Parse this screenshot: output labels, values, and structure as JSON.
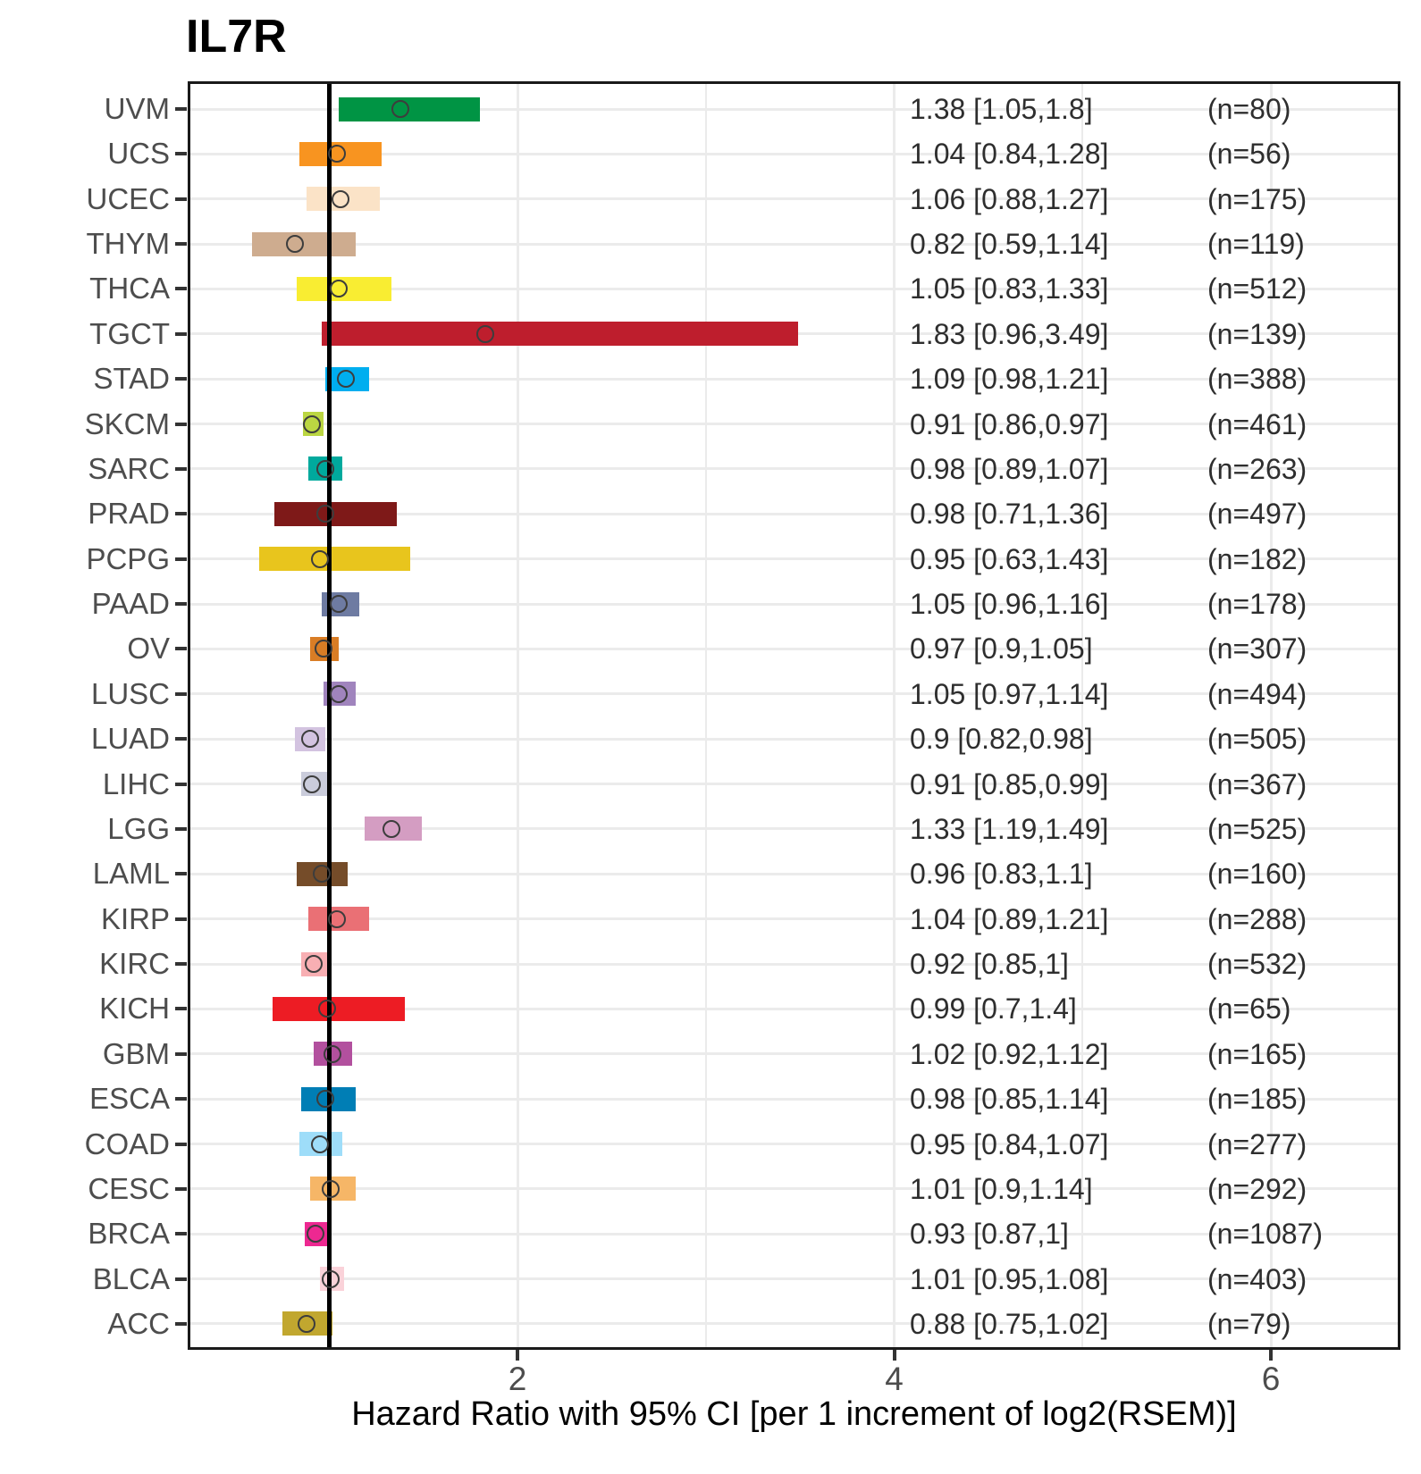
{
  "title": "IL7R",
  "x_axis_title": "Hazard Ratio with 95% CI [per 1 increment of log2(RSEM)]",
  "chart_data": {
    "type": "forest",
    "title": "IL7R",
    "xlabel": "Hazard Ratio with 95% CI [per 1 increment of log2(RSEM)]",
    "x_ticks": [
      2,
      4,
      6
    ],
    "x_minor_ticks": [
      3,
      5
    ],
    "xlim": [
      0.25,
      6.68
    ],
    "reference_line_x": 1,
    "grid": true,
    "legend": "none",
    "rows": [
      {
        "cancer": "UVM",
        "hr": 1.38,
        "ci_low": 1.05,
        "ci_high": 1.8,
        "n": 80,
        "color": "#009444",
        "hr_label": "1.38 [1.05,1.8]",
        "n_label": "(n=80)"
      },
      {
        "cancer": "UCS",
        "hr": 1.04,
        "ci_low": 0.84,
        "ci_high": 1.28,
        "n": 56,
        "color": "#F89420",
        "hr_label": "1.04 [0.84,1.28]",
        "n_label": "(n=56)"
      },
      {
        "cancer": "UCEC",
        "hr": 1.06,
        "ci_low": 0.88,
        "ci_high": 1.27,
        "n": 175,
        "color": "#FBE3C7",
        "hr_label": "1.06 [0.88,1.27]",
        "n_label": "(n=175)"
      },
      {
        "cancer": "THYM",
        "hr": 0.82,
        "ci_low": 0.59,
        "ci_high": 1.14,
        "n": 119,
        "color": "#CEAC8F",
        "hr_label": "0.82 [0.59,1.14]",
        "n_label": "(n=119)"
      },
      {
        "cancer": "THCA",
        "hr": 1.05,
        "ci_low": 0.83,
        "ci_high": 1.33,
        "n": 512,
        "color": "#F9ED32",
        "hr_label": "1.05 [0.83,1.33]",
        "n_label": "(n=512)"
      },
      {
        "cancer": "TGCT",
        "hr": 1.83,
        "ci_low": 0.96,
        "ci_high": 3.49,
        "n": 139,
        "color": "#BE1E2D",
        "hr_label": "1.83 [0.96,3.49]",
        "n_label": "(n=139)"
      },
      {
        "cancer": "STAD",
        "hr": 1.09,
        "ci_low": 0.98,
        "ci_high": 1.21,
        "n": 388,
        "color": "#00AEEF",
        "hr_label": "1.09 [0.98,1.21]",
        "n_label": "(n=388)"
      },
      {
        "cancer": "SKCM",
        "hr": 0.91,
        "ci_low": 0.86,
        "ci_high": 0.97,
        "n": 461,
        "color": "#BBD642",
        "hr_label": "0.91 [0.86,0.97]",
        "n_label": "(n=461)"
      },
      {
        "cancer": "SARC",
        "hr": 0.98,
        "ci_low": 0.89,
        "ci_high": 1.07,
        "n": 263,
        "color": "#00A99D",
        "hr_label": "0.98 [0.89,1.07]",
        "n_label": "(n=263)"
      },
      {
        "cancer": "PRAD",
        "hr": 0.98,
        "ci_low": 0.71,
        "ci_high": 1.36,
        "n": 497,
        "color": "#7E1918",
        "hr_label": "0.98 [0.71,1.36]",
        "n_label": "(n=497)"
      },
      {
        "cancer": "PCPG",
        "hr": 0.95,
        "ci_low": 0.63,
        "ci_high": 1.43,
        "n": 182,
        "color": "#E8C51D",
        "hr_label": "0.95 [0.63,1.43]",
        "n_label": "(n=182)"
      },
      {
        "cancer": "PAAD",
        "hr": 1.05,
        "ci_low": 0.96,
        "ci_high": 1.16,
        "n": 178,
        "color": "#6E7BA2",
        "hr_label": "1.05 [0.96,1.16]",
        "n_label": "(n=178)"
      },
      {
        "cancer": "OV",
        "hr": 0.97,
        "ci_low": 0.9,
        "ci_high": 1.05,
        "n": 307,
        "color": "#D97D25",
        "hr_label": "0.97 [0.9,1.05]",
        "n_label": "(n=307)"
      },
      {
        "cancer": "LUSC",
        "hr": 1.05,
        "ci_low": 0.97,
        "ci_high": 1.14,
        "n": 494,
        "color": "#A084BD",
        "hr_label": "1.05 [0.97,1.14]",
        "n_label": "(n=494)"
      },
      {
        "cancer": "LUAD",
        "hr": 0.9,
        "ci_low": 0.82,
        "ci_high": 0.98,
        "n": 505,
        "color": "#D3C3E0",
        "hr_label": "0.9 [0.82,0.98]",
        "n_label": "(n=505)"
      },
      {
        "cancer": "LIHC",
        "hr": 0.91,
        "ci_low": 0.85,
        "ci_high": 0.99,
        "n": 367,
        "color": "#CACCDB",
        "hr_label": "0.91 [0.85,0.99]",
        "n_label": "(n=367)"
      },
      {
        "cancer": "LGG",
        "hr": 1.33,
        "ci_low": 1.19,
        "ci_high": 1.49,
        "n": 525,
        "color": "#D49DC2",
        "hr_label": "1.33 [1.19,1.49]",
        "n_label": "(n=525)"
      },
      {
        "cancer": "LAML",
        "hr": 0.96,
        "ci_low": 0.83,
        "ci_high": 1.1,
        "n": 160,
        "color": "#754C29",
        "hr_label": "0.96 [0.83,1.1]",
        "n_label": "(n=160)"
      },
      {
        "cancer": "KIRP",
        "hr": 1.04,
        "ci_low": 0.89,
        "ci_high": 1.21,
        "n": 288,
        "color": "#EA7075",
        "hr_label": "1.04 [0.89,1.21]",
        "n_label": "(n=288)"
      },
      {
        "cancer": "KIRC",
        "hr": 0.92,
        "ci_low": 0.85,
        "ci_high": 1,
        "n": 532,
        "color": "#F8AFB3",
        "hr_label": "0.92 [0.85,1]",
        "n_label": "(n=532)"
      },
      {
        "cancer": "KICH",
        "hr": 0.99,
        "ci_low": 0.7,
        "ci_high": 1.4,
        "n": 65,
        "color": "#ED1C24",
        "hr_label": "0.99 [0.7,1.4]",
        "n_label": "(n=65)"
      },
      {
        "cancer": "GBM",
        "hr": 1.02,
        "ci_low": 0.92,
        "ci_high": 1.12,
        "n": 165,
        "color": "#B2509E",
        "hr_label": "1.02 [0.92,1.12]",
        "n_label": "(n=165)"
      },
      {
        "cancer": "ESCA",
        "hr": 0.98,
        "ci_low": 0.85,
        "ci_high": 1.14,
        "n": 185,
        "color": "#007EB5",
        "hr_label": "0.98 [0.85,1.14]",
        "n_label": "(n=185)"
      },
      {
        "cancer": "COAD",
        "hr": 0.95,
        "ci_low": 0.84,
        "ci_high": 1.07,
        "n": 277,
        "color": "#9EDDF9",
        "hr_label": "0.95 [0.84,1.07]",
        "n_label": "(n=277)"
      },
      {
        "cancer": "CESC",
        "hr": 1.01,
        "ci_low": 0.9,
        "ci_high": 1.14,
        "n": 292,
        "color": "#F6B667",
        "hr_label": "1.01 [0.9,1.14]",
        "n_label": "(n=292)"
      },
      {
        "cancer": "BRCA",
        "hr": 0.93,
        "ci_low": 0.87,
        "ci_high": 1,
        "n": 1087,
        "color": "#ED2891",
        "hr_label": "0.93 [0.87,1]",
        "n_label": "(n=1087)"
      },
      {
        "cancer": "BLCA",
        "hr": 1.01,
        "ci_low": 0.95,
        "ci_high": 1.08,
        "n": 403,
        "color": "#FAD2D9",
        "hr_label": "1.01 [0.95,1.08]",
        "n_label": "(n=403)"
      },
      {
        "cancer": "ACC",
        "hr": 0.88,
        "ci_low": 0.75,
        "ci_high": 1.02,
        "n": 79,
        "color": "#C1A72F",
        "hr_label": "0.88 [0.75,1.02]",
        "n_label": "(n=79)"
      }
    ]
  }
}
